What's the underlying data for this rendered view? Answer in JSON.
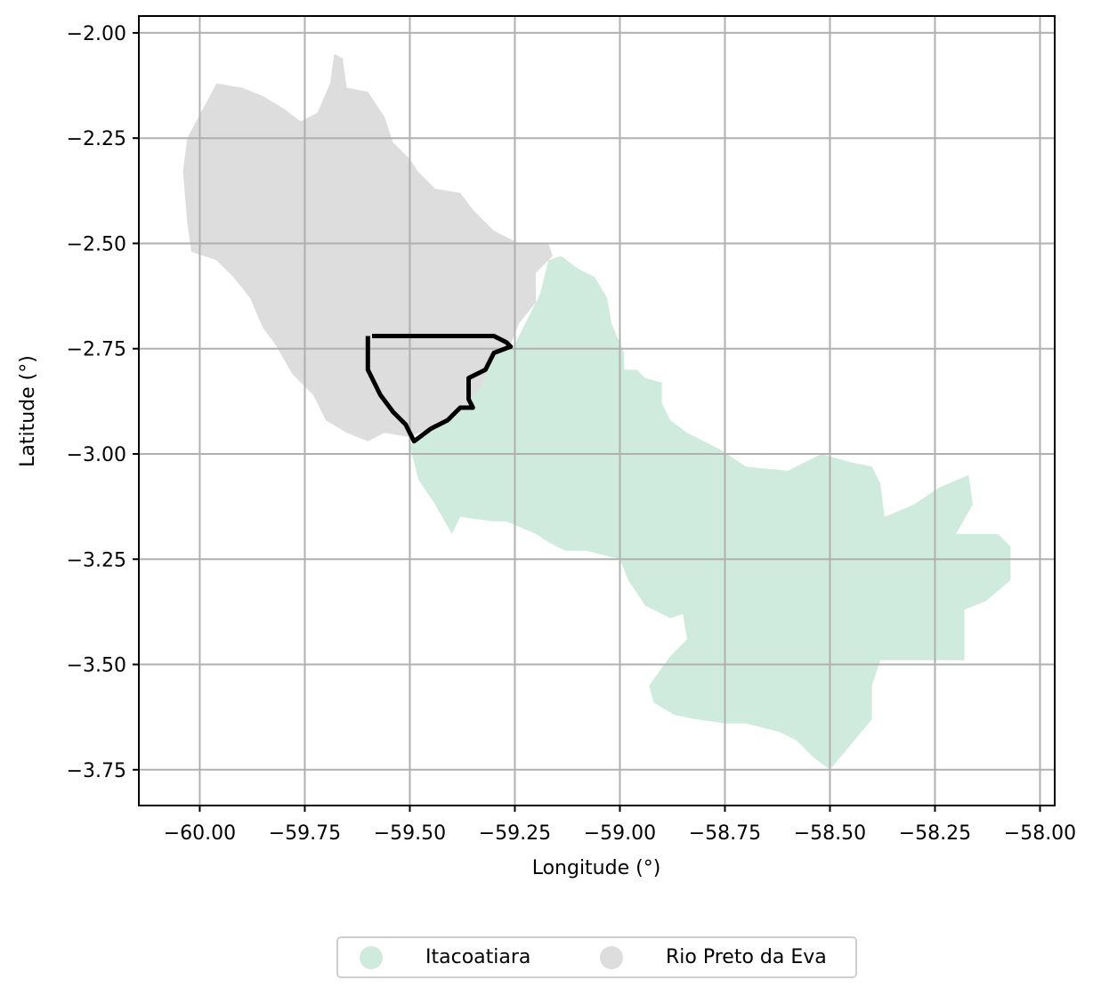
{
  "map": {
    "x_axis": {
      "label": "Longitude (°)",
      "ticks": [
        -60.0,
        -59.75,
        -59.5,
        -59.25,
        -59.0,
        -58.75,
        -58.5,
        -58.25,
        -58.0
      ],
      "tick_labels": [
        "−60.00",
        "−59.75",
        "−59.50",
        "−59.25",
        "−59.00",
        "−58.75",
        "−58.50",
        "−58.25",
        "−58.00"
      ],
      "range": [
        -60.145,
        -57.965
      ]
    },
    "y_axis": {
      "label": "Latitude (°)",
      "ticks": [
        -2.0,
        -2.25,
        -2.5,
        -2.75,
        -3.0,
        -3.25,
        -3.5,
        -3.75
      ],
      "tick_labels": [
        "−2.00",
        "−2.25",
        "−2.50",
        "−2.75",
        "−3.00",
        "−3.25",
        "−3.50",
        "−3.75"
      ],
      "range": [
        -3.835,
        -1.96
      ]
    },
    "grid": true,
    "legend_placement": "bottom-center",
    "regions": [
      {
        "name": "Itacoatiara",
        "color": "#cfebdd",
        "boundary": [
          [
            -59.17,
            -2.54
          ],
          [
            -59.14,
            -2.53
          ],
          [
            -59.1,
            -2.56
          ],
          [
            -59.06,
            -2.58
          ],
          [
            -59.03,
            -2.63
          ],
          [
            -59.02,
            -2.69
          ],
          [
            -58.99,
            -2.76
          ],
          [
            -58.99,
            -2.8
          ],
          [
            -58.96,
            -2.8
          ],
          [
            -58.94,
            -2.82
          ],
          [
            -58.9,
            -2.83
          ],
          [
            -58.9,
            -2.88
          ],
          [
            -58.88,
            -2.92
          ],
          [
            -58.84,
            -2.95
          ],
          [
            -58.76,
            -2.99
          ],
          [
            -58.7,
            -3.03
          ],
          [
            -58.6,
            -3.04
          ],
          [
            -58.52,
            -3.0
          ],
          [
            -58.45,
            -3.02
          ],
          [
            -58.4,
            -3.03
          ],
          [
            -58.38,
            -3.07
          ],
          [
            -58.37,
            -3.15
          ],
          [
            -58.3,
            -3.12
          ],
          [
            -58.24,
            -3.08
          ],
          [
            -58.17,
            -3.05
          ],
          [
            -58.16,
            -3.12
          ],
          [
            -58.2,
            -3.19
          ],
          [
            -58.1,
            -3.19
          ],
          [
            -58.07,
            -3.22
          ],
          [
            -58.07,
            -3.3
          ],
          [
            -58.13,
            -3.35
          ],
          [
            -58.18,
            -3.37
          ],
          [
            -58.18,
            -3.49
          ],
          [
            -58.38,
            -3.49
          ],
          [
            -58.4,
            -3.55
          ],
          [
            -58.4,
            -3.63
          ],
          [
            -58.45,
            -3.69
          ],
          [
            -58.5,
            -3.75
          ],
          [
            -58.54,
            -3.72
          ],
          [
            -58.58,
            -3.68
          ],
          [
            -58.62,
            -3.66
          ],
          [
            -58.7,
            -3.64
          ],
          [
            -58.75,
            -3.64
          ],
          [
            -58.82,
            -3.63
          ],
          [
            -58.87,
            -3.62
          ],
          [
            -58.92,
            -3.59
          ],
          [
            -58.93,
            -3.55
          ],
          [
            -58.88,
            -3.48
          ],
          [
            -58.84,
            -3.44
          ],
          [
            -58.85,
            -3.38
          ],
          [
            -58.88,
            -3.39
          ],
          [
            -58.94,
            -3.36
          ],
          [
            -58.98,
            -3.3
          ],
          [
            -59.0,
            -3.25
          ],
          [
            -59.08,
            -3.23
          ],
          [
            -59.13,
            -3.23
          ],
          [
            -59.17,
            -3.21
          ],
          [
            -59.2,
            -3.19
          ],
          [
            -59.27,
            -3.16
          ],
          [
            -59.3,
            -3.16
          ],
          [
            -59.38,
            -3.15
          ],
          [
            -59.4,
            -3.19
          ],
          [
            -59.44,
            -3.12
          ],
          [
            -59.48,
            -3.06
          ],
          [
            -59.5,
            -2.98
          ],
          [
            -59.48,
            -2.96
          ],
          [
            -59.42,
            -2.93
          ],
          [
            -59.38,
            -2.9
          ],
          [
            -59.33,
            -2.83
          ],
          [
            -59.3,
            -2.76
          ],
          [
            -59.25,
            -2.74
          ],
          [
            -59.22,
            -2.68
          ],
          [
            -59.19,
            -2.62
          ]
        ]
      },
      {
        "name": "Rio Preto da Eva",
        "color": "#dddddd",
        "boundary": [
          [
            -59.96,
            -2.12
          ],
          [
            -59.9,
            -2.13
          ],
          [
            -59.85,
            -2.15
          ],
          [
            -59.8,
            -2.18
          ],
          [
            -59.76,
            -2.21
          ],
          [
            -59.72,
            -2.19
          ],
          [
            -59.69,
            -2.12
          ],
          [
            -59.68,
            -2.05
          ],
          [
            -59.66,
            -2.06
          ],
          [
            -59.65,
            -2.13
          ],
          [
            -59.6,
            -2.14
          ],
          [
            -59.58,
            -2.17
          ],
          [
            -59.56,
            -2.2
          ],
          [
            -59.54,
            -2.26
          ],
          [
            -59.5,
            -2.3
          ],
          [
            -59.48,
            -2.33
          ],
          [
            -59.44,
            -2.37
          ],
          [
            -59.38,
            -2.38
          ],
          [
            -59.35,
            -2.42
          ],
          [
            -59.3,
            -2.47
          ],
          [
            -59.24,
            -2.5
          ],
          [
            -59.17,
            -2.5
          ],
          [
            -59.16,
            -2.53
          ],
          [
            -59.2,
            -2.57
          ],
          [
            -59.2,
            -2.64
          ],
          [
            -59.24,
            -2.69
          ],
          [
            -59.26,
            -2.74
          ],
          [
            -59.3,
            -2.77
          ],
          [
            -59.33,
            -2.84
          ],
          [
            -59.38,
            -2.9
          ],
          [
            -59.43,
            -2.93
          ],
          [
            -59.5,
            -2.96
          ],
          [
            -59.56,
            -2.95
          ],
          [
            -59.6,
            -2.97
          ],
          [
            -59.65,
            -2.95
          ],
          [
            -59.7,
            -2.92
          ],
          [
            -59.73,
            -2.86
          ],
          [
            -59.78,
            -2.81
          ],
          [
            -59.82,
            -2.74
          ],
          [
            -59.85,
            -2.7
          ],
          [
            -59.88,
            -2.63
          ],
          [
            -59.92,
            -2.58
          ],
          [
            -59.96,
            -2.54
          ],
          [
            -60.02,
            -2.52
          ],
          [
            -60.03,
            -2.45
          ],
          [
            -60.04,
            -2.33
          ],
          [
            -60.03,
            -2.25
          ]
        ]
      }
    ],
    "outline": [
      [
        -59.59,
        -2.72
      ],
      [
        -59.5,
        -2.72
      ],
      [
        -59.4,
        -2.72
      ],
      [
        -59.3,
        -2.72
      ],
      [
        -59.27,
        -2.735
      ],
      [
        -59.26,
        -2.745
      ],
      [
        -59.3,
        -2.76
      ],
      [
        -59.32,
        -2.8
      ],
      [
        -59.36,
        -2.82
      ],
      [
        -59.36,
        -2.87
      ],
      [
        -59.35,
        -2.89
      ],
      [
        -59.38,
        -2.89
      ],
      [
        -59.41,
        -2.92
      ],
      [
        -59.45,
        -2.94
      ],
      [
        -59.49,
        -2.97
      ],
      [
        -59.51,
        -2.93
      ],
      [
        -59.54,
        -2.9
      ],
      [
        -59.57,
        -2.86
      ],
      [
        -59.58,
        -2.84
      ],
      [
        -59.6,
        -2.8
      ],
      [
        -59.6,
        -2.72
      ]
    ],
    "outline_color": "#000000"
  },
  "legend": {
    "items": [
      {
        "label": "Itacoatiara",
        "color": "#cfebdd"
      },
      {
        "label": "Rio Preto da Eva",
        "color": "#dddddd"
      }
    ]
  }
}
